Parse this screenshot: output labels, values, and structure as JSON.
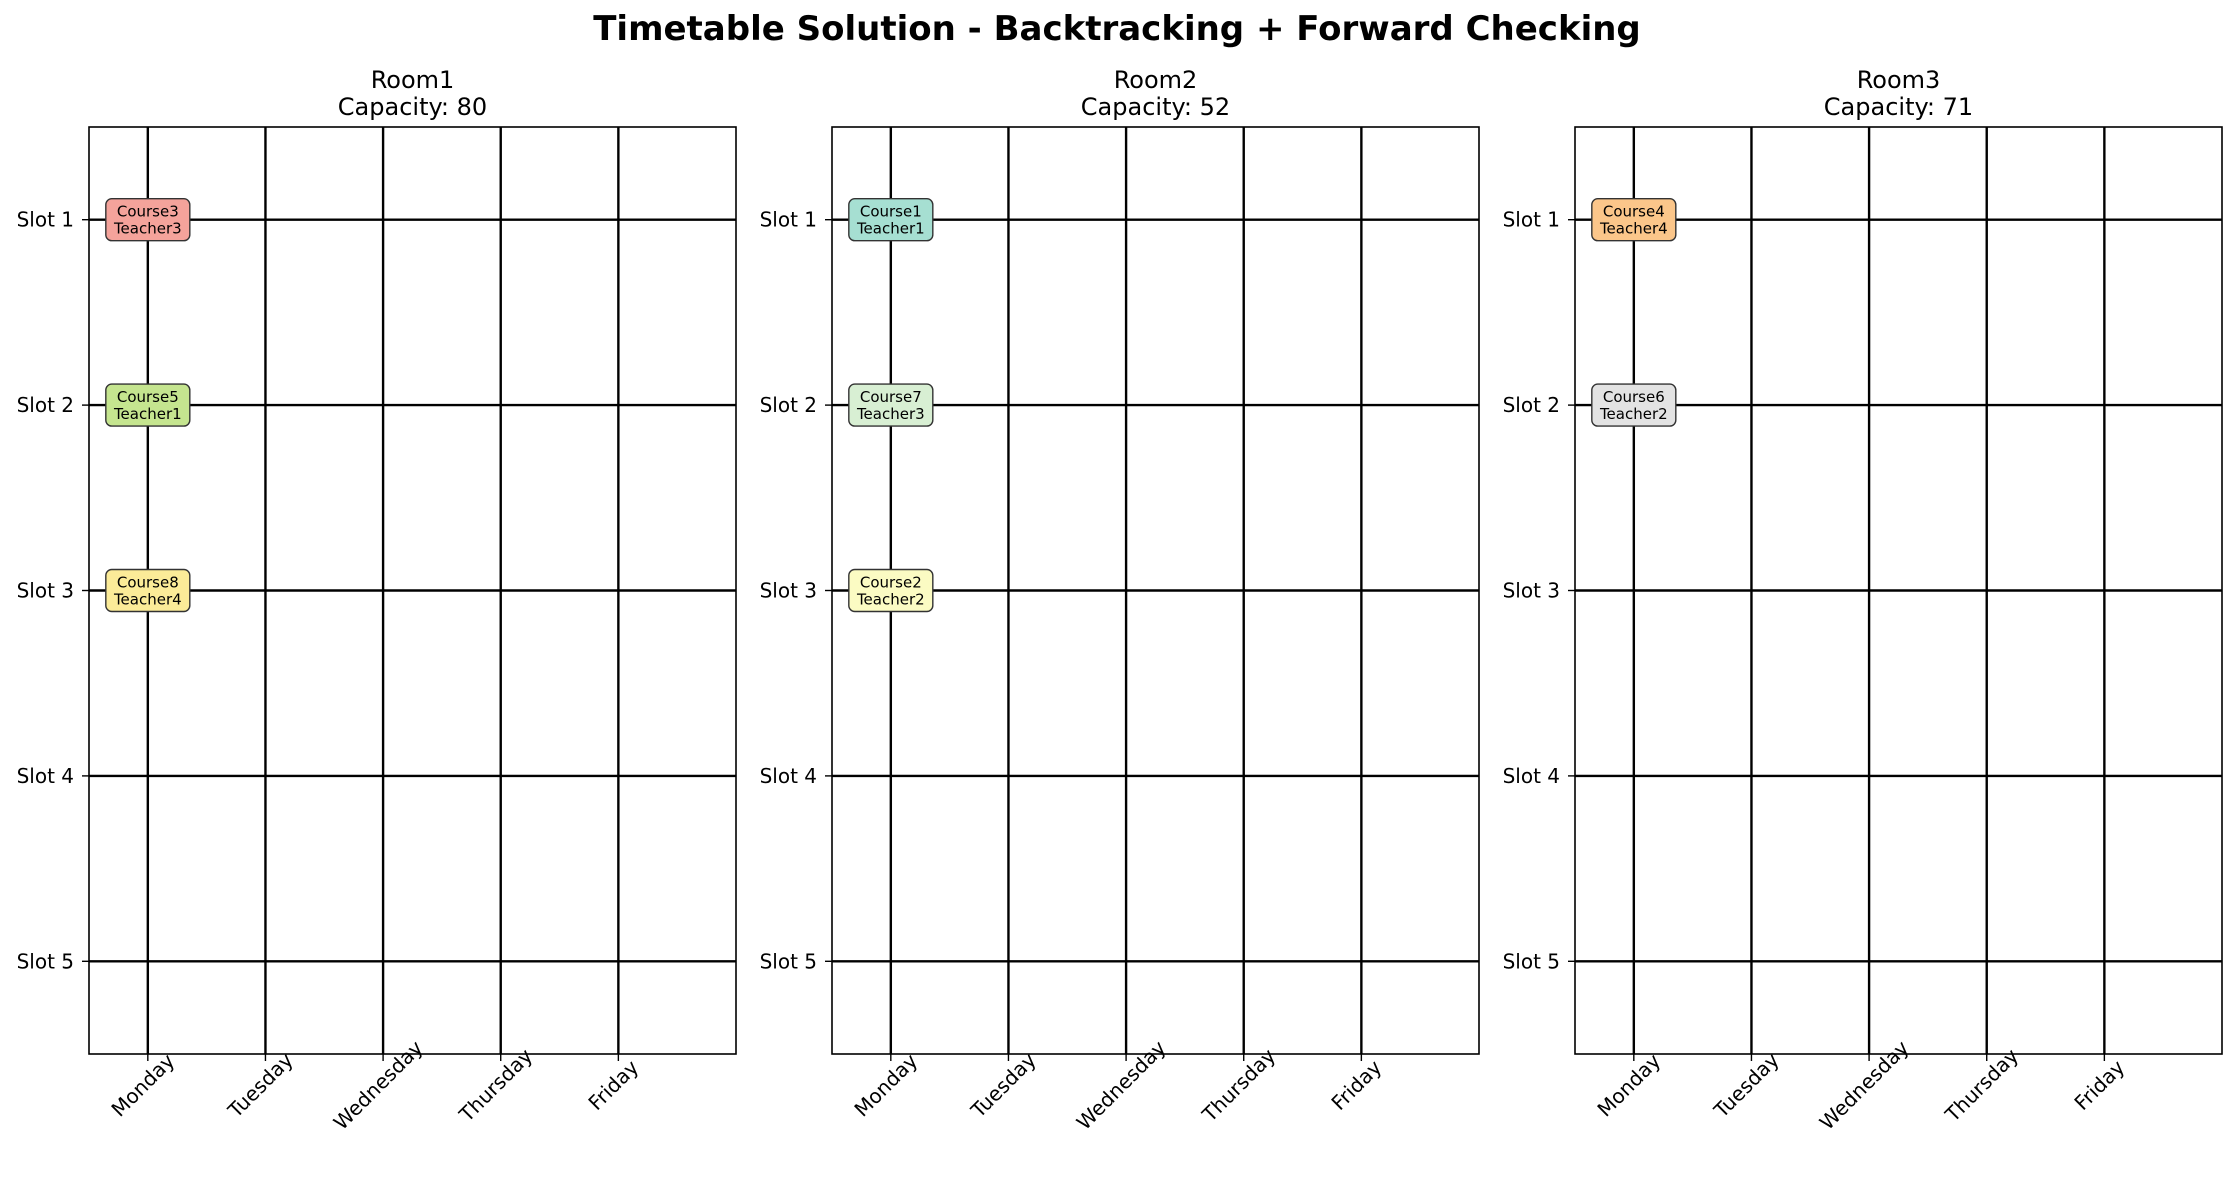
{
  "figure": {
    "title": "Timetable Solution - Backtracking + Forward Checking"
  },
  "chart_data": {
    "type": "table",
    "days": [
      "Monday",
      "Tuesday",
      "Wednesday",
      "Thursday",
      "Friday"
    ],
    "slots": [
      "Slot 1",
      "Slot 2",
      "Slot 3",
      "Slot 4",
      "Slot 5"
    ],
    "grid": true,
    "rooms": [
      {
        "name": "Room1",
        "capacity_label": "Capacity: 80",
        "capacity": 80,
        "assignments": [
          {
            "course": "Course3",
            "teacher": "Teacher3",
            "day": "Monday",
            "slot": 1,
            "color": "#f4a39b"
          },
          {
            "course": "Course5",
            "teacher": "Teacher1",
            "day": "Monday",
            "slot": 2,
            "color": "#c5e58f"
          },
          {
            "course": "Course8",
            "teacher": "Teacher4",
            "day": "Monday",
            "slot": 3,
            "color": "#fbeb98"
          }
        ]
      },
      {
        "name": "Room2",
        "capacity_label": "Capacity: 52",
        "capacity": 52,
        "assignments": [
          {
            "course": "Course1",
            "teacher": "Teacher1",
            "day": "Monday",
            "slot": 1,
            "color": "#a6dfd2"
          },
          {
            "course": "Course7",
            "teacher": "Teacher3",
            "day": "Monday",
            "slot": 2,
            "color": "#d8efd3"
          },
          {
            "course": "Course2",
            "teacher": "Teacher2",
            "day": "Monday",
            "slot": 3,
            "color": "#fbfbc3"
          }
        ]
      },
      {
        "name": "Room3",
        "capacity_label": "Capacity: 71",
        "capacity": 71,
        "assignments": [
          {
            "course": "Course4",
            "teacher": "Teacher4",
            "day": "Monday",
            "slot": 1,
            "color": "#fbc68a"
          },
          {
            "course": "Course6",
            "teacher": "Teacher2",
            "day": "Monday",
            "slot": 2,
            "color": "#e3e3e3"
          }
        ]
      }
    ]
  }
}
